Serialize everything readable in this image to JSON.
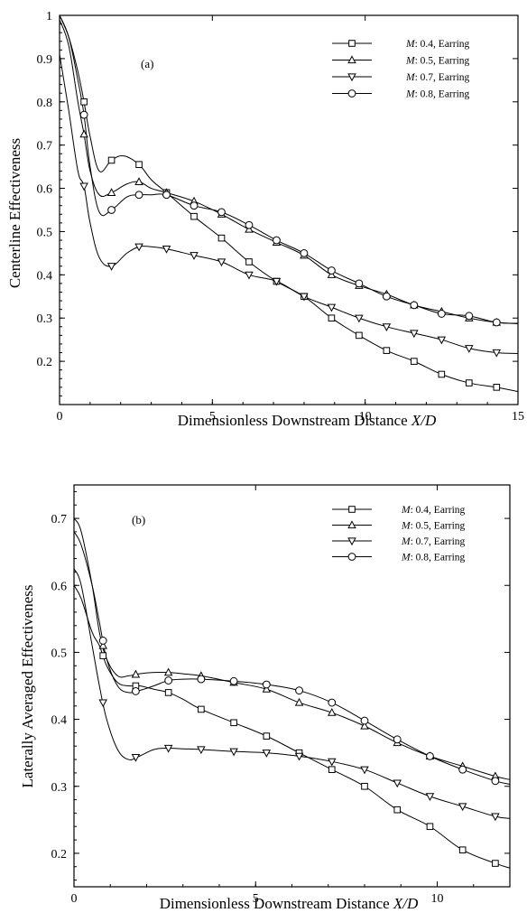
{
  "chart_data": [
    {
      "type": "line",
      "panel_label": "(a)",
      "xlabel": "Dimensionless Downstream Distance",
      "xlabel_italic": "X/D",
      "ylabel": "Centerline Effectiveness",
      "xlim": [
        0,
        15
      ],
      "ylim": [
        0.1,
        1.0
      ],
      "xticks": [
        0,
        5,
        10,
        15
      ],
      "yticks": [
        0.2,
        0.3,
        0.4,
        0.5,
        0.6,
        0.7,
        0.8,
        0.9,
        1
      ],
      "grid": false,
      "legend_position": "top-right",
      "series": [
        {
          "name_prefix": "M",
          "name_suffix": ": 0.4, Earring",
          "marker": "square",
          "x": [
            0,
            0.3,
            0.6,
            0.8,
            1.0,
            1.3,
            1.7,
            2.1,
            2.6,
            3.0,
            3.5,
            4.4,
            5.3,
            6.2,
            7.1,
            8.0,
            8.9,
            9.8,
            10.7,
            11.6,
            12.5,
            13.4,
            14.3,
            15.0
          ],
          "y": [
            1.0,
            0.95,
            0.87,
            0.8,
            0.72,
            0.64,
            0.665,
            0.675,
            0.655,
            0.62,
            0.59,
            0.535,
            0.485,
            0.43,
            0.385,
            0.35,
            0.3,
            0.26,
            0.225,
            0.2,
            0.17,
            0.15,
            0.14,
            0.13
          ],
          "marker_x": [
            0.8,
            1.7,
            2.6,
            3.5,
            4.4,
            5.3,
            6.2,
            7.1,
            8.0,
            8.9,
            9.8,
            10.7,
            11.6,
            12.5,
            13.4,
            14.3
          ]
        },
        {
          "name_prefix": "M",
          "name_suffix": ": 0.5, Earring",
          "marker": "triangle-up",
          "x": [
            0,
            0.3,
            0.6,
            0.8,
            1.0,
            1.3,
            1.7,
            2.2,
            2.6,
            3.0,
            3.5,
            4.4,
            5.3,
            6.2,
            7.1,
            8.0,
            8.9,
            9.8,
            10.7,
            11.6,
            12.5,
            13.4,
            14.3,
            15.0
          ],
          "y": [
            0.99,
            0.93,
            0.8,
            0.725,
            0.64,
            0.585,
            0.59,
            0.61,
            0.615,
            0.6,
            0.59,
            0.57,
            0.54,
            0.505,
            0.475,
            0.445,
            0.4,
            0.375,
            0.355,
            0.33,
            0.315,
            0.3,
            0.29,
            0.287
          ],
          "marker_x": [
            0.8,
            1.7,
            2.6,
            3.5,
            4.4,
            5.3,
            6.2,
            7.1,
            8.0,
            8.9,
            9.8,
            10.7,
            11.6,
            12.5,
            13.4,
            14.3
          ]
        },
        {
          "name_prefix": "M",
          "name_suffix": ": 0.7, Earring",
          "marker": "triangle-down",
          "x": [
            0,
            0.3,
            0.6,
            0.8,
            1.0,
            1.3,
            1.7,
            2.2,
            2.6,
            3.0,
            3.5,
            4.4,
            5.3,
            6.2,
            7.1,
            8.0,
            8.9,
            9.8,
            10.7,
            11.6,
            12.5,
            13.4,
            14.3,
            15.0
          ],
          "y": [
            0.91,
            0.78,
            0.64,
            0.605,
            0.52,
            0.44,
            0.42,
            0.45,
            0.465,
            0.465,
            0.46,
            0.445,
            0.43,
            0.4,
            0.385,
            0.35,
            0.325,
            0.3,
            0.28,
            0.265,
            0.25,
            0.23,
            0.22,
            0.218
          ],
          "marker_x": [
            0.8,
            1.7,
            2.6,
            3.5,
            4.4,
            5.3,
            6.2,
            7.1,
            8.0,
            8.9,
            9.8,
            10.7,
            11.6,
            12.5,
            13.4,
            14.3
          ]
        },
        {
          "name_prefix": "M",
          "name_suffix": ": 0.8, Earring",
          "marker": "circle",
          "x": [
            0,
            0.3,
            0.6,
            0.8,
            1.0,
            1.3,
            1.7,
            2.2,
            2.6,
            3.0,
            3.5,
            4.4,
            5.3,
            6.2,
            7.1,
            8.0,
            8.9,
            9.8,
            10.7,
            11.6,
            12.5,
            13.4,
            14.3,
            15.0
          ],
          "y": [
            1.0,
            0.95,
            0.85,
            0.77,
            0.65,
            0.545,
            0.55,
            0.58,
            0.585,
            0.585,
            0.585,
            0.56,
            0.545,
            0.515,
            0.48,
            0.45,
            0.41,
            0.38,
            0.35,
            0.33,
            0.31,
            0.305,
            0.29,
            0.288
          ],
          "marker_x": [
            0.8,
            1.7,
            2.6,
            3.5,
            4.4,
            5.3,
            6.2,
            7.1,
            8.0,
            8.9,
            9.8,
            10.7,
            11.6,
            12.5,
            13.4,
            14.3
          ]
        }
      ]
    },
    {
      "type": "line",
      "panel_label": "(b)",
      "xlabel": "Dimensionless Downstream Distance",
      "xlabel_italic": "X/D",
      "ylabel": "Laterally Averaged Effectiveness",
      "xlim": [
        0,
        12
      ],
      "ylim": [
        0.15,
        0.75
      ],
      "xticks": [
        0,
        5,
        10
      ],
      "yticks": [
        0.2,
        0.3,
        0.4,
        0.5,
        0.6,
        0.7
      ],
      "grid": false,
      "legend_position": "top-right",
      "series": [
        {
          "name_prefix": "M",
          "name_suffix": ": 0.4, Earring",
          "marker": "square",
          "x": [
            0,
            0.2,
            0.5,
            0.7,
            0.9,
            1.2,
            1.5,
            1.8,
            2.2,
            2.6,
            3.0,
            3.5,
            4.4,
            5.3,
            6.2,
            7.1,
            8.0,
            8.9,
            9.8,
            10.7,
            11.6,
            12.0
          ],
          "y": [
            0.6,
            0.58,
            0.53,
            0.51,
            0.48,
            0.455,
            0.45,
            0.45,
            0.445,
            0.44,
            0.43,
            0.415,
            0.395,
            0.375,
            0.35,
            0.325,
            0.3,
            0.265,
            0.24,
            0.205,
            0.185,
            0.178
          ],
          "marker_x": [
            0.8,
            1.7,
            2.6,
            3.5,
            4.4,
            5.3,
            6.2,
            7.1,
            8.0,
            8.9,
            9.8,
            10.7,
            11.6
          ]
        },
        {
          "name_prefix": "M",
          "name_suffix": ": 0.5, Earring",
          "marker": "triangle-up",
          "x": [
            0,
            0.2,
            0.5,
            0.7,
            0.9,
            1.2,
            1.5,
            1.8,
            2.2,
            2.6,
            3.0,
            3.5,
            4.4,
            5.3,
            6.2,
            7.1,
            8.0,
            8.9,
            9.8,
            10.7,
            11.6,
            12.0
          ],
          "y": [
            0.7,
            0.68,
            0.6,
            0.53,
            0.49,
            0.465,
            0.465,
            0.468,
            0.47,
            0.47,
            0.468,
            0.465,
            0.455,
            0.445,
            0.425,
            0.41,
            0.39,
            0.365,
            0.345,
            0.33,
            0.315,
            0.31
          ],
          "marker_x": [
            0.8,
            1.7,
            2.6,
            3.5,
            4.4,
            5.3,
            6.2,
            7.1,
            8.0,
            8.9,
            9.8,
            10.7,
            11.6
          ]
        },
        {
          "name_prefix": "M",
          "name_suffix": ": 0.7, Earring",
          "marker": "triangle-down",
          "x": [
            0,
            0.2,
            0.5,
            0.7,
            0.9,
            1.2,
            1.5,
            1.8,
            2.2,
            2.6,
            3.0,
            3.5,
            4.4,
            5.3,
            6.2,
            7.1,
            8.0,
            8.9,
            9.8,
            10.7,
            11.6,
            12.0
          ],
          "y": [
            0.625,
            0.6,
            0.51,
            0.45,
            0.4,
            0.355,
            0.34,
            0.345,
            0.355,
            0.357,
            0.356,
            0.355,
            0.352,
            0.35,
            0.345,
            0.337,
            0.325,
            0.305,
            0.285,
            0.27,
            0.255,
            0.252
          ],
          "marker_x": [
            0.8,
            1.7,
            2.6,
            3.5,
            4.4,
            5.3,
            6.2,
            7.1,
            8.0,
            8.9,
            9.8,
            10.7,
            11.6
          ]
        },
        {
          "name_prefix": "M",
          "name_suffix": ": 0.8, Earring",
          "marker": "circle",
          "x": [
            0,
            0.2,
            0.5,
            0.7,
            0.9,
            1.2,
            1.5,
            1.8,
            2.2,
            2.6,
            3.0,
            3.5,
            4.4,
            5.3,
            6.2,
            7.1,
            8.0,
            8.9,
            9.8,
            10.7,
            11.6,
            12.0
          ],
          "y": [
            0.68,
            0.66,
            0.6,
            0.545,
            0.49,
            0.45,
            0.44,
            0.443,
            0.45,
            0.458,
            0.46,
            0.46,
            0.457,
            0.452,
            0.443,
            0.425,
            0.398,
            0.37,
            0.345,
            0.325,
            0.308,
            0.303
          ],
          "marker_x": [
            0.8,
            1.7,
            2.6,
            3.5,
            4.4,
            5.3,
            6.2,
            7.1,
            8.0,
            8.9,
            9.8,
            10.7,
            11.6
          ]
        }
      ]
    }
  ]
}
